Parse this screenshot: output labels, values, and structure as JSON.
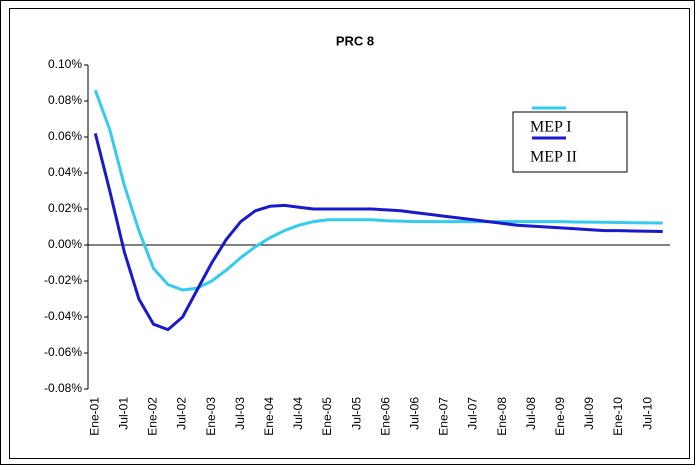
{
  "chart_data": {
    "type": "line",
    "title": "PRC 8",
    "categories": [
      "Ene-01",
      null,
      "Jul-01",
      null,
      "Ene-02",
      null,
      "Jul-02",
      null,
      "Ene-03",
      null,
      "Jul-03",
      null,
      "Ene-04",
      null,
      "Jul-04",
      null,
      "Ene-05",
      null,
      "Jul-05",
      null,
      "Ene-06",
      null,
      "Jul-06",
      null,
      "Ene-07",
      null,
      "Jul-07",
      null,
      "Ene-08",
      null,
      "Jul-08",
      null,
      "Ene-09",
      null,
      "Jul-09",
      null,
      "Ene-10",
      null,
      "Jul-10",
      null
    ],
    "series": [
      {
        "name": "MEP I",
        "color": "#33ccee",
        "values": [
          0.086,
          0.064,
          0.033,
          0.008,
          -0.013,
          -0.022,
          -0.025,
          -0.024,
          -0.02,
          -0.014,
          -0.007,
          -0.001,
          0.004,
          0.008,
          0.011,
          0.013,
          0.014,
          0.014,
          0.014,
          0.014,
          0.0135,
          0.0133,
          0.013,
          0.013,
          0.013,
          0.013,
          0.013,
          0.013,
          0.013,
          0.013,
          0.013,
          0.013,
          0.013,
          0.0128,
          0.0127,
          0.0126,
          0.0125,
          0.0124,
          0.0123,
          0.0122
        ]
      },
      {
        "name": "MEP II",
        "color": "#1a1acc",
        "values": [
          0.062,
          0.03,
          -0.004,
          -0.03,
          -0.044,
          -0.047,
          -0.04,
          -0.025,
          -0.01,
          0.003,
          0.013,
          0.019,
          0.0215,
          0.022,
          0.021,
          0.02,
          0.02,
          0.02,
          0.02,
          0.02,
          0.0195,
          0.019,
          0.018,
          0.017,
          0.016,
          0.015,
          0.014,
          0.013,
          0.012,
          0.011,
          0.0105,
          0.01,
          0.0095,
          0.009,
          0.0085,
          0.008,
          0.008,
          0.0078,
          0.0076,
          0.0075
        ]
      }
    ],
    "ylim": [
      -0.08,
      0.1
    ],
    "yticks": [
      {
        "value": -0.08,
        "label": "-0.08%"
      },
      {
        "value": -0.06,
        "label": "-0.06%"
      },
      {
        "value": -0.04,
        "label": "-0.04%"
      },
      {
        "value": -0.02,
        "label": "-0.02%"
      },
      {
        "value": 0,
        "label": "0.00%"
      },
      {
        "value": 0.02,
        "label": "0.02%"
      },
      {
        "value": 0.04,
        "label": "0.04%"
      },
      {
        "value": 0.06,
        "label": "0.06%"
      },
      {
        "value": 0.08,
        "label": "0.08%"
      },
      {
        "value": 0.1,
        "label": "0.10%"
      }
    ]
  }
}
